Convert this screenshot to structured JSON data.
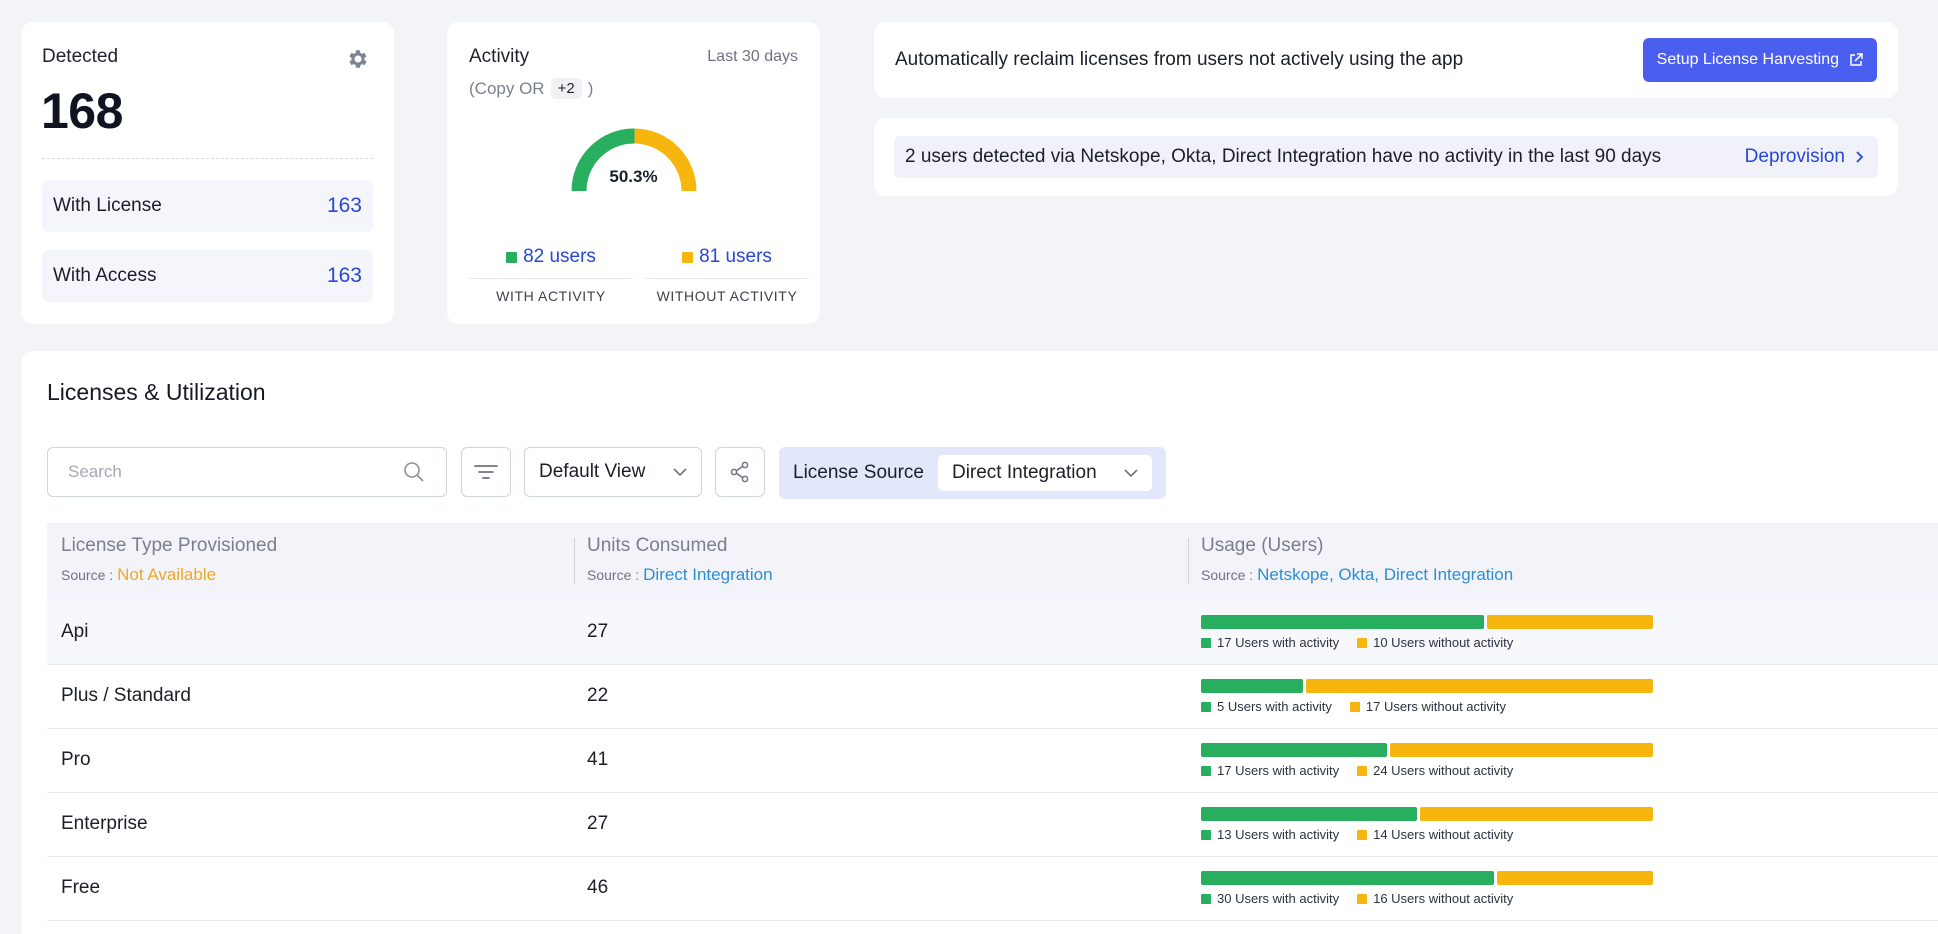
{
  "detected": {
    "title": "Detected",
    "count": "168",
    "rows": [
      {
        "label": "With License",
        "value": "163"
      },
      {
        "label": "With Access",
        "value": "163"
      }
    ]
  },
  "activity": {
    "title": "Activity",
    "range": "Last 30 days",
    "sub_prefix": "(Copy OR",
    "sub_pill": "+2",
    "sub_suffix": ")",
    "percent_label": "50.3%",
    "percent_value": 50.3,
    "with": {
      "users": "82 users",
      "label": "WITH ACTIVITY"
    },
    "without": {
      "users": "81 users",
      "label": "WITHOUT ACTIVITY"
    },
    "colors": {
      "with": "#27ae5f",
      "without": "#f6b60d"
    }
  },
  "harvest": {
    "message": "Automatically reclaim licenses from users not actively using the app",
    "button": "Setup License Harvesting"
  },
  "deprovision": {
    "message": "2 users detected via Netskope, Okta, Direct Integration have no activity in the last 90 days",
    "link": "Deprovision"
  },
  "licenses": {
    "title": "Licenses & Utilization",
    "search_placeholder": "Search",
    "view": "Default View",
    "source_filter_label": "License Source",
    "source_filter_value": "Direct Integration",
    "columns": [
      {
        "header": "License Type Provisioned",
        "source_label": "Source :",
        "source_value": "Not Available",
        "source_color": "#f0a823"
      },
      {
        "header": "Units Consumed",
        "source_label": "Source :",
        "source_value": "Direct Integration",
        "source_color": "#2b8ed6"
      },
      {
        "header": "Usage (Users)",
        "source_label": "Source :",
        "source_value": "Netskope, Okta, Direct Integration",
        "source_color": "#2b8ed6"
      }
    ],
    "rows": [
      {
        "type": "Api",
        "units": "27",
        "with": 17,
        "without": 10,
        "with_label": "17 Users with activity",
        "without_label": "10 Users without activity"
      },
      {
        "type": "Plus / Standard",
        "units": "22",
        "with": 5,
        "without": 17,
        "with_label": "5 Users with activity",
        "without_label": "17 Users without activity"
      },
      {
        "type": "Pro",
        "units": "41",
        "with": 17,
        "without": 24,
        "with_label": "17 Users with activity",
        "without_label": "24 Users without activity"
      },
      {
        "type": "Enterprise",
        "units": "27",
        "with": 13,
        "without": 14,
        "with_label": "13 Users with activity",
        "without_label": "14 Users without activity"
      },
      {
        "type": "Free",
        "units": "46",
        "with": 30,
        "without": 16,
        "with_label": "30 Users with activity",
        "without_label": "16 Users without activity"
      }
    ]
  }
}
